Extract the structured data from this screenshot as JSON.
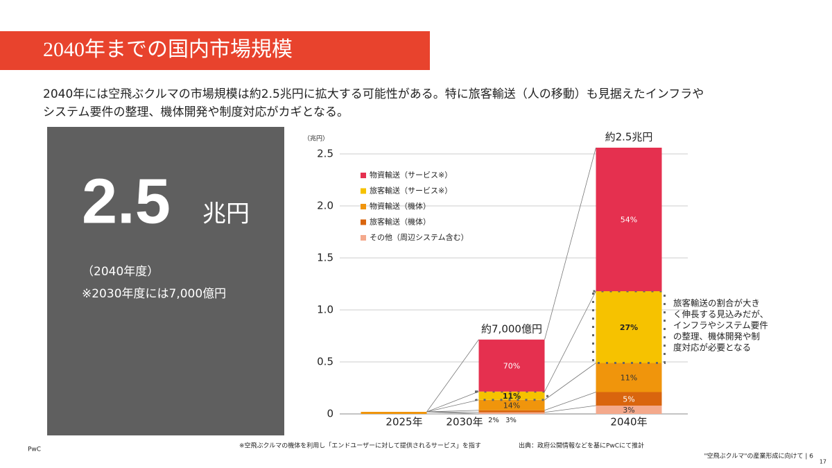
{
  "header": {
    "title": "2040年までの国内市場規模",
    "lead": [
      "2040年には空飛ぶクルマの市場規模は約2.5兆円に拡大する可能性がある。特に旅客輸送（人の移動）も見据えたインフラや",
      "システム要件の整理、機体開発や制度対応がカギとなる。"
    ]
  },
  "panel": {
    "big": "2.5",
    "unit": "兆円",
    "year": "（2040年度）",
    "note": "※2030年度には7,000億円"
  },
  "chart_data": {
    "type": "stacked-bar",
    "y_unit": "（兆円）",
    "categories": [
      "2025年",
      "2030年",
      "2040年"
    ],
    "total_labels": [
      null,
      "約7,000億円",
      "約2.5兆円"
    ],
    "series": [
      {
        "name": "その他（周辺システム含む）",
        "color": "#f4a98c",
        "label_color": "#333333",
        "values": [
          0,
          0.015,
          0.08
        ],
        "share_labels": [
          null,
          "2%",
          "3%"
        ]
      },
      {
        "name": "旅客輸送（機体）",
        "color": "#d9650e",
        "label_color": "#ffffff",
        "values": [
          0,
          0.02,
          0.13
        ],
        "share_labels": [
          null,
          "3%",
          "5%"
        ]
      },
      {
        "name": "物資輸送（機体）",
        "color": "#f0950c",
        "label_color": "#333333",
        "values": [
          0.02,
          0.1,
          0.28
        ],
        "share_labels": [
          null,
          "14%",
          "11%"
        ]
      },
      {
        "name": "旅客輸送（サービス※）",
        "color": "#f6c200",
        "label_color": "#222222",
        "values": [
          0,
          0.08,
          0.69
        ],
        "share_labels": [
          null,
          "11%",
          "27%"
        ]
      },
      {
        "name": "物資輸送（サービス※）",
        "color": "#e5304f",
        "label_color": "#ffffff",
        "values": [
          0,
          0.5,
          1.38
        ],
        "share_labels": [
          null,
          "70%",
          "54%"
        ]
      }
    ],
    "ylim": [
      0,
      2.6
    ],
    "yticks": [
      0,
      0.5,
      {
        "value": 1,
        "label": "1.0"
      },
      1.5,
      {
        "value": 2,
        "label": "2.0"
      },
      2.5
    ],
    "grid": true,
    "annotation": [
      "旅客輸送の割合が大き",
      "く伸長する見込みだが、",
      "インフラやシステム要件",
      "の整理、機体開発や制",
      "度対応が必要となる"
    ]
  },
  "footer": {
    "brand": "PwC",
    "note": "※空飛ぶクルマの機体を利用し「エンドユーザーに対して提供されるサービス」を指す",
    "source": "出典：政府公開情報などを基にPwCにて推計",
    "doc": "\"空飛ぶクルマ\"の産業形成に向けて | 6",
    "page": "17"
  }
}
